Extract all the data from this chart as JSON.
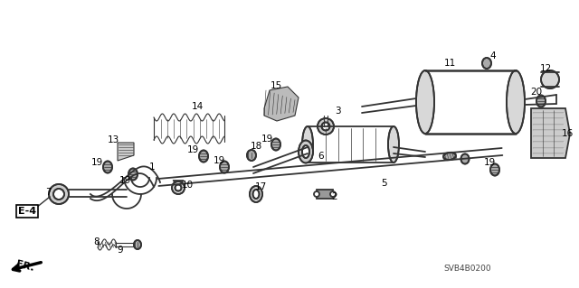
{
  "bg_color": "#ffffff",
  "line_color": "#333333",
  "label_color": "#000000",
  "code": "SVB4B0200",
  "figsize": [
    6.4,
    3.19
  ],
  "dpi": 100,
  "xlim": [
    0,
    640
  ],
  "ylim": [
    0,
    319
  ]
}
